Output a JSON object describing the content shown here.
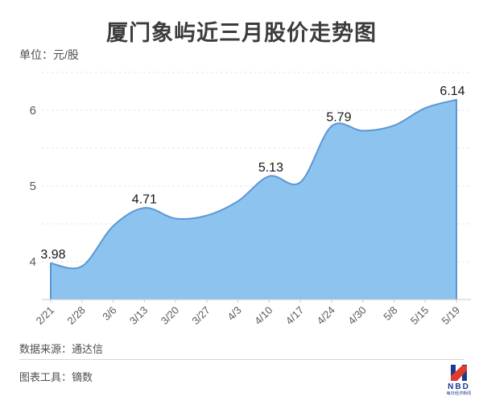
{
  "header": {
    "title": "厦门象屿近三月股价走势图",
    "unit_label": "单位：元/股"
  },
  "footer": {
    "source": "数据来源：通达信",
    "tool": "图表工具：镝数"
  },
  "logo": {
    "text": "NBD",
    "subtext": "每日经济新闻",
    "blue": "#1a3a8f",
    "red": "#e23b2e"
  },
  "chart_data": {
    "type": "area",
    "title": "厦门象屿近三月股价走势图",
    "unit": "元/股",
    "categories": [
      "2/21",
      "2/28",
      "3/6",
      "3/13",
      "3/20",
      "3/27",
      "4/3",
      "4/10",
      "4/17",
      "4/24",
      "4/30",
      "5/8",
      "5/15",
      "5/19"
    ],
    "series": [
      {
        "name": "股价",
        "values": [
          3.98,
          3.94,
          4.47,
          4.71,
          4.57,
          4.61,
          4.8,
          5.13,
          5.05,
          5.79,
          5.73,
          5.8,
          6.03,
          6.14
        ]
      }
    ],
    "point_labels": [
      {
        "index": 0,
        "text": "3.98",
        "dx": 3
      },
      {
        "index": 3,
        "text": "4.71",
        "dx": 0
      },
      {
        "index": 7,
        "text": "5.13",
        "dx": 2
      },
      {
        "index": 9,
        "text": "5.79",
        "dx": 9
      },
      {
        "index": 13,
        "text": "6.14",
        "dx": -5
      }
    ],
    "y_ticks": [
      4,
      5,
      6
    ],
    "ylim": [
      3.5,
      6.5
    ],
    "grid_step": 0.5,
    "grid": "dashed-horizontal",
    "legend": "none",
    "colors": {
      "fill": "#8cc3ef",
      "line": "#5d97d4",
      "grid": "#e3e3e3",
      "axis": "#c9c9c9",
      "axis_text": "#5a5a5a",
      "point_label": "#161616"
    }
  }
}
